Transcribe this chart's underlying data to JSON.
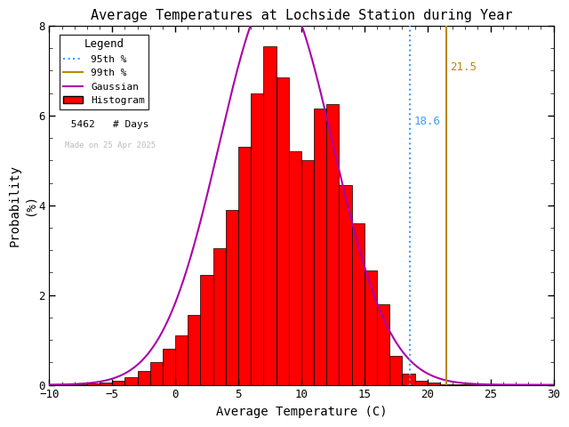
{
  "title": "Average Temperatures at Lochside Station during Year",
  "xlabel": "Average Temperature (C)",
  "ylabel_line1": "Probability",
  "ylabel_line2": "(%)",
  "xlim": [
    -10,
    30
  ],
  "ylim": [
    0,
    8
  ],
  "xticks": [
    -10,
    -5,
    0,
    5,
    10,
    15,
    20,
    25,
    30
  ],
  "yticks": [
    0,
    2,
    4,
    6,
    8
  ],
  "n_days": 5462,
  "gauss_mean": 8.0,
  "gauss_std": 4.5,
  "pct95": 18.6,
  "pct99": 21.5,
  "bin_left_edges": [
    -9,
    -8,
    -7,
    -6,
    -5,
    -4,
    -3,
    -2,
    -1,
    0,
    1,
    2,
    3,
    4,
    5,
    6,
    7,
    8,
    9,
    10,
    11,
    12,
    13,
    14,
    15,
    16,
    17,
    18,
    19,
    20,
    21,
    22,
    23,
    24
  ],
  "bin_heights": [
    0.02,
    0.02,
    0.04,
    0.06,
    0.1,
    0.18,
    0.3,
    0.5,
    0.8,
    1.1,
    1.55,
    2.45,
    3.05,
    3.9,
    5.3,
    6.5,
    7.55,
    6.85,
    5.2,
    5.0,
    6.15,
    6.25,
    4.45,
    3.6,
    2.55,
    1.8,
    0.65,
    0.25,
    0.1,
    0.05,
    0.01,
    0.01,
    0.01,
    0.01
  ],
  "bar_color": "#ff0000",
  "bar_edgecolor": "#000000",
  "gaussian_color": "#aa00aa",
  "pct95_color": "#4499ff",
  "pct99_color": "#bb8800",
  "watermark": "Made on 25 Apr 2025",
  "watermark_color": "#bbbbbb",
  "background_color": "#ffffff",
  "legend_title": "Legend"
}
